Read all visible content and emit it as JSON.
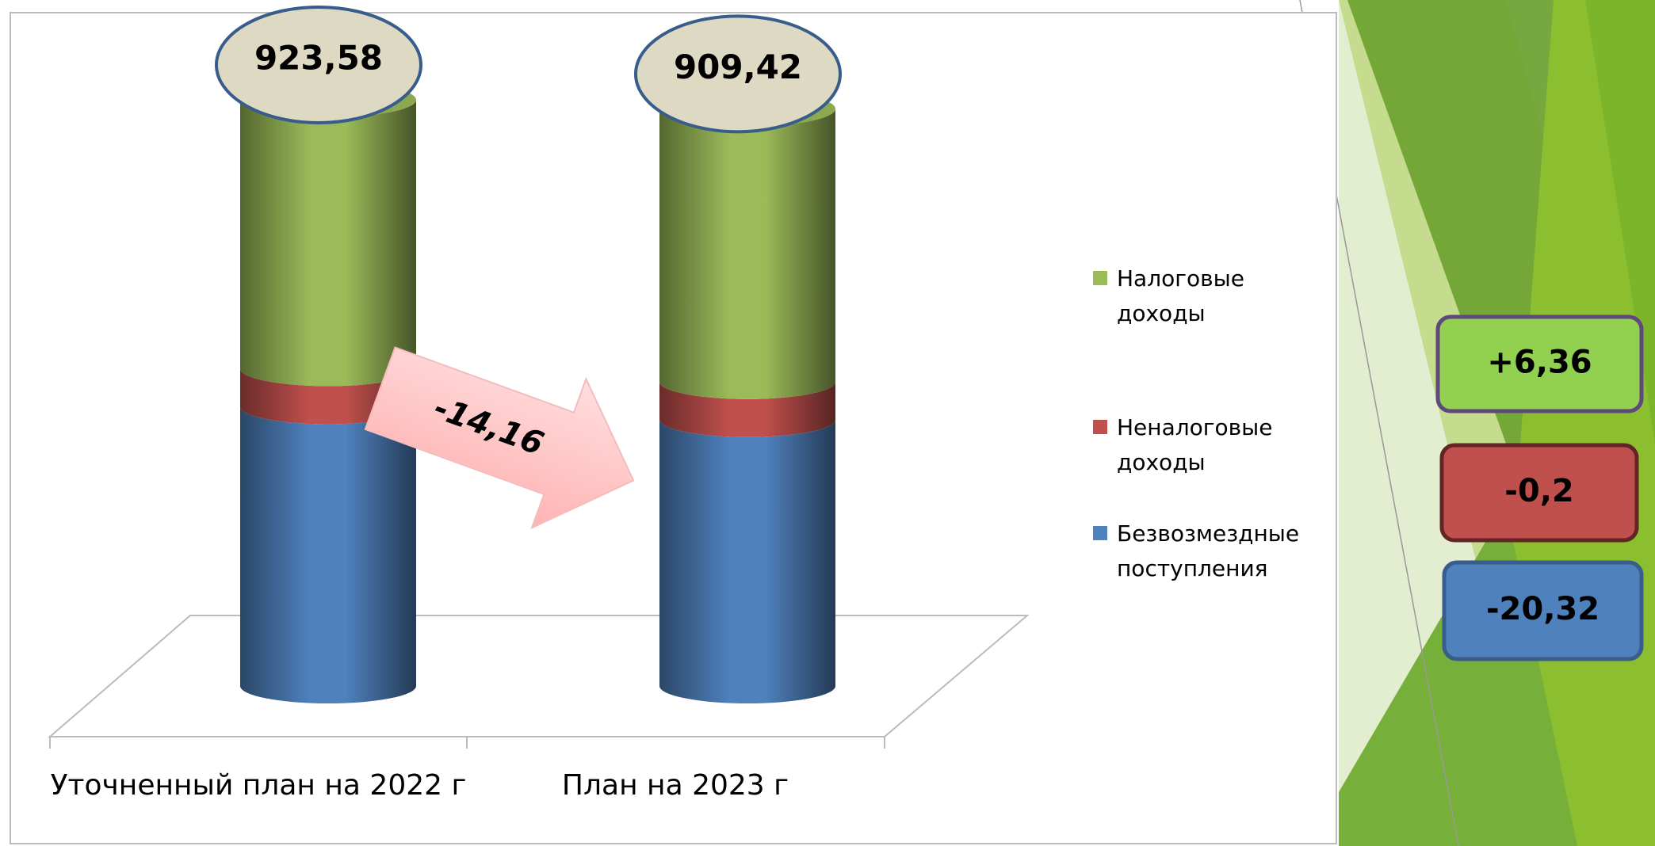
{
  "chart_data": {
    "type": "stacked-cylinder",
    "categories": [
      "Уточненный план на 2022 г",
      "План на 2023 г"
    ],
    "series": [
      {
        "name": "Безвозмездные поступления",
        "color": "#4f81bd",
        "values": [
          440.0,
          419.68
        ]
      },
      {
        "name": "Неналоговые доходы",
        "color": "#c0504d",
        "values": [
          60.0,
          59.8
        ]
      },
      {
        "name": "Налоговые доходы",
        "color": "#9bbb59",
        "values": [
          423.58,
          429.94
        ]
      }
    ],
    "totals": {
      "values": [
        923.58,
        909.42
      ],
      "value_labels": [
        "923,58",
        "909,42"
      ]
    },
    "total_change": {
      "value": -14.16,
      "label": "-14,16"
    },
    "changes": {
      "values": [
        6.36,
        -0.2,
        -20.32
      ],
      "value_labels": [
        "+6,36",
        "-0,2",
        "-20,32"
      ],
      "colors": [
        "#92d050",
        "#c0504d",
        "#4f81bd"
      ]
    }
  }
}
